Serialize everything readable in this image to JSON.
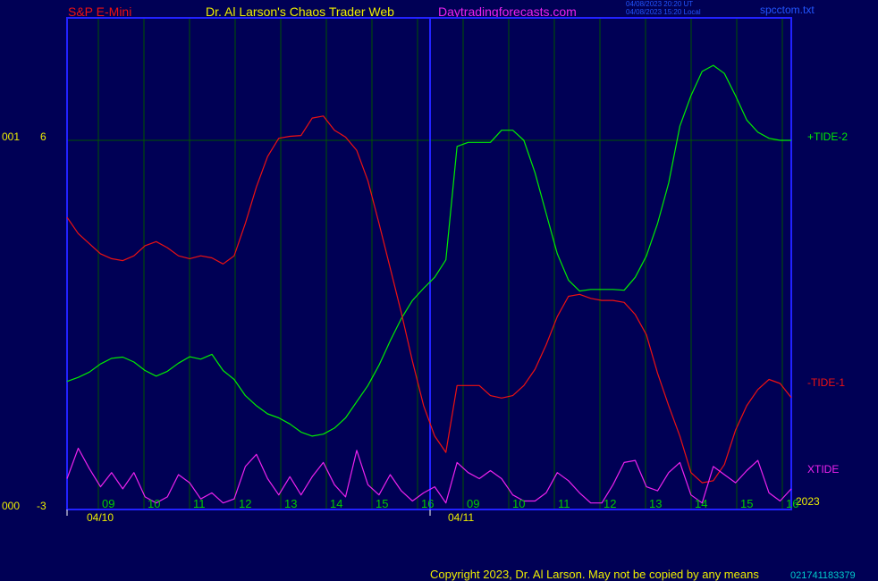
{
  "header": {
    "instrument": "S&P E-Mini",
    "author": "Dr. Al Larson's Chaos Trader Web",
    "site": "Daytradingforecasts.com",
    "stamp_ut": "04/08/2023 20:20 UT",
    "stamp_local": "04/08/2023 15:20 Local",
    "file": "spcctom.txt"
  },
  "footer": {
    "copyright": "Copyright 2023, Dr. Al Larson. May not be copied by any means",
    "code": "021741183379"
  },
  "colors": {
    "background": "#000055",
    "frame": "#2222ff",
    "tide2": "#00ee00",
    "tide1": "#ee1111",
    "xtide": "#ee22ee",
    "hour_labels": "#00cc00",
    "axis_text": "#eeee00",
    "instrument": "#ee1111",
    "author": "#eeee00",
    "site": "#ee22ee",
    "stamp": "#2255ff",
    "copyright": "#eeee00"
  },
  "chart_data": {
    "type": "line",
    "y_axis": {
      "label_top_left": "001",
      "value_top": "6",
      "label_bottom_left": "000",
      "value_bottom": "-3"
    },
    "year": "2023",
    "date_labels": [
      "04/10",
      "04/11"
    ],
    "hour_labels": [
      "09",
      "10",
      "11",
      "12",
      "13",
      "14",
      "15",
      "16",
      "09",
      "10",
      "11",
      "12",
      "13",
      "14",
      "15",
      "16"
    ],
    "series": [
      {
        "name": "+TIDE-2",
        "color": "#00ee00",
        "values": [
          0.05,
          0.15,
          0.28,
          0.48,
          0.62,
          0.65,
          0.53,
          0.32,
          0.18,
          0.3,
          0.5,
          0.66,
          0.6,
          0.72,
          0.32,
          0.1,
          -0.3,
          -0.55,
          -0.75,
          -0.85,
          -1.0,
          -1.2,
          -1.3,
          -1.25,
          -1.1,
          -0.85,
          -0.45,
          -0.05,
          0.45,
          1.05,
          1.6,
          2.05,
          2.35,
          2.62,
          3.05,
          5.85,
          5.95,
          5.95,
          5.95,
          6.25,
          6.25,
          6.0,
          5.2,
          4.2,
          3.2,
          2.55,
          2.28,
          2.32,
          2.32,
          2.32,
          2.3,
          2.62,
          3.15,
          3.95,
          4.95,
          6.35,
          7.1,
          7.7,
          7.85,
          7.65,
          7.1,
          6.5,
          6.2,
          6.05,
          6.0,
          6.0
        ]
      },
      {
        "name": "-TIDE-1",
        "color": "#ee1111",
        "values": [
          4.1,
          3.7,
          3.45,
          3.2,
          3.08,
          3.03,
          3.15,
          3.4,
          3.5,
          3.35,
          3.15,
          3.08,
          3.15,
          3.1,
          2.95,
          3.15,
          3.95,
          4.85,
          5.6,
          6.05,
          6.1,
          6.12,
          6.55,
          6.6,
          6.25,
          6.08,
          5.75,
          5.0,
          3.95,
          2.85,
          1.75,
          0.55,
          -0.55,
          -1.3,
          -1.7,
          -0.05,
          -0.05,
          -0.05,
          -0.3,
          -0.36,
          -0.3,
          -0.05,
          0.35,
          0.95,
          1.65,
          2.15,
          2.2,
          2.1,
          2.05,
          2.05,
          2.0,
          1.7,
          1.2,
          0.25,
          -0.55,
          -1.3,
          -2.2,
          -2.45,
          -2.4,
          -2.0,
          -1.15,
          -0.55,
          -0.15,
          0.1,
          0.0,
          -0.35
        ]
      },
      {
        "name": "XTIDE",
        "color": "#ee22ee",
        "values": [
          -2.35,
          -1.6,
          -2.1,
          -2.55,
          -2.2,
          -2.6,
          -2.2,
          -2.8,
          -2.95,
          -2.8,
          -2.25,
          -2.45,
          -2.85,
          -2.7,
          -2.95,
          -2.85,
          -2.05,
          -1.75,
          -2.35,
          -2.75,
          -2.3,
          -2.75,
          -2.3,
          -1.95,
          -2.5,
          -2.8,
          -1.65,
          -2.5,
          -2.75,
          -2.25,
          -2.65,
          -2.9,
          -2.7,
          -2.55,
          -2.95,
          -1.95,
          -2.2,
          -2.35,
          -2.15,
          -2.35,
          -2.75,
          -2.9,
          -2.9,
          -2.7,
          -2.2,
          -2.4,
          -2.7,
          -2.95,
          -2.95,
          -2.5,
          -1.95,
          -1.9,
          -2.55,
          -2.65,
          -2.2,
          -1.95,
          -2.75,
          -2.95,
          -2.05,
          -2.25,
          -2.45,
          -2.15,
          -1.9,
          -2.7,
          -2.9,
          -2.6
        ]
      }
    ]
  }
}
